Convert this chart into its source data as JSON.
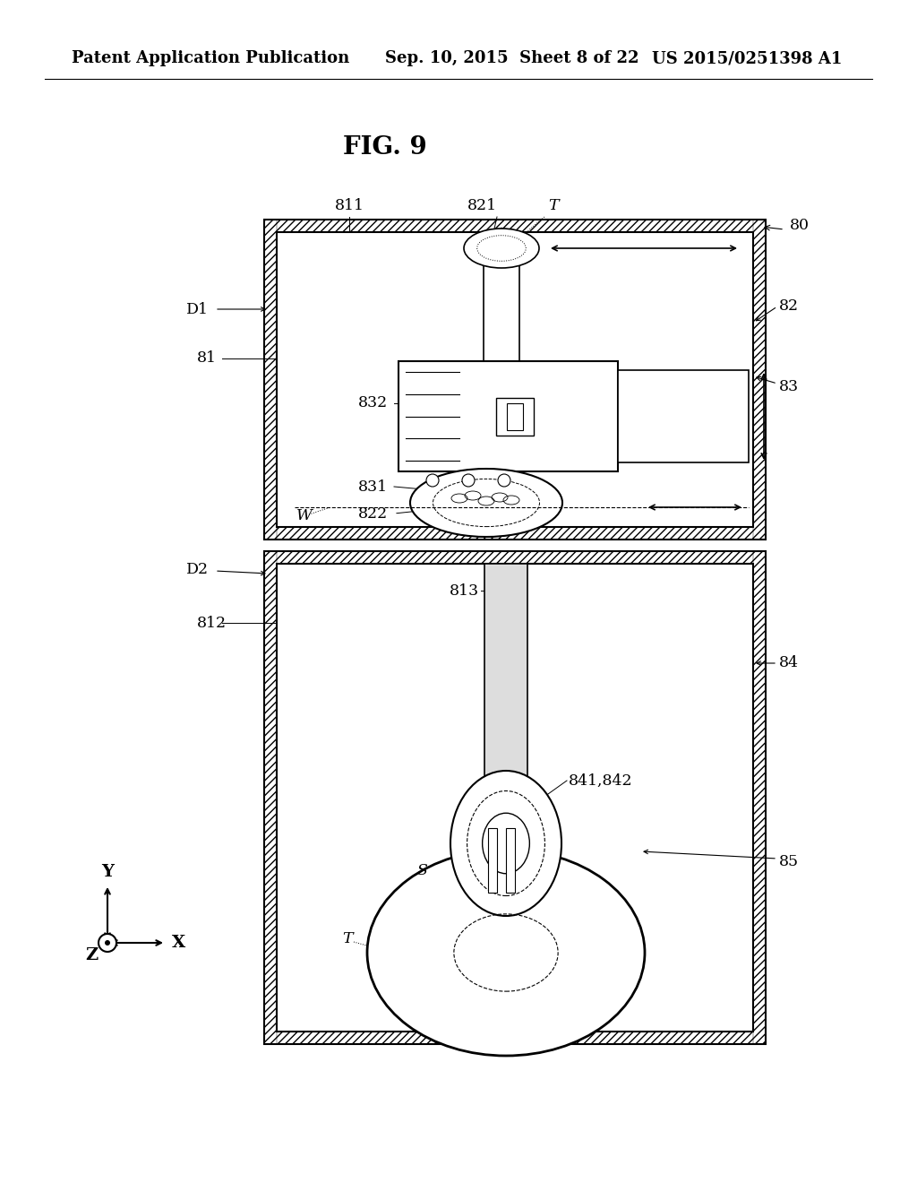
{
  "header_left": "Patent Application Publication",
  "header_mid": "Sep. 10, 2015  Sheet 8 of 22",
  "header_right": "US 2015/0251398 A1",
  "fig_label": "FIG. 9",
  "bg_color": "#ffffff",
  "line_color": "#000000"
}
